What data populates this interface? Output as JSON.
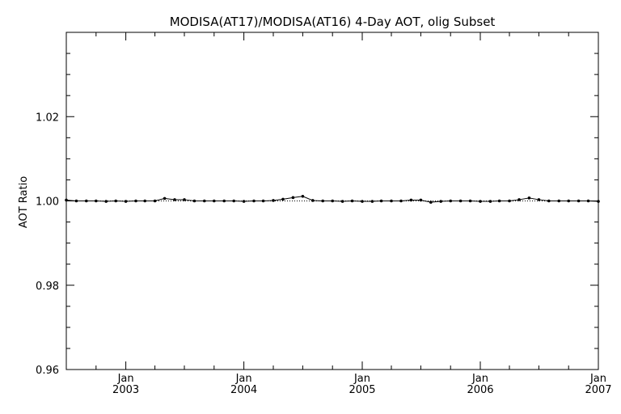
{
  "chart_data": {
    "type": "line",
    "title": "MODISA(AT17)/MODISA(AT16) 4-Day AOT, olig Subset",
    "xlabel": "",
    "ylabel": "AOT Ratio",
    "x_axis": {
      "type": "date",
      "range": [
        "2002-07-01",
        "2007-01-01"
      ],
      "major_ticks": [
        {
          "date": "2003-01-01",
          "month_label": "Jan",
          "year_label": "2003"
        },
        {
          "date": "2004-01-01",
          "month_label": "Jan",
          "year_label": "2004"
        },
        {
          "date": "2005-01-01",
          "month_label": "Jan",
          "year_label": "2005"
        },
        {
          "date": "2006-01-01",
          "month_label": "Jan",
          "year_label": "2006"
        },
        {
          "date": "2007-01-01",
          "month_label": "Jan",
          "year_label": "2007"
        }
      ]
    },
    "y_axis": {
      "ylim": [
        0.96,
        1.04
      ],
      "tick_labels": [
        "0.96",
        "0.98",
        "1.00",
        "1.02"
      ]
    },
    "reference_line": {
      "y": 1.0,
      "style": "dotted"
    },
    "series": [
      {
        "x": [
          "2002-07-01",
          "2002-08-01",
          "2002-09-01",
          "2002-10-01",
          "2002-11-01",
          "2002-12-01",
          "2003-01-01",
          "2003-02-01",
          "2003-03-01",
          "2003-04-01",
          "2003-05-01",
          "2003-06-01",
          "2003-07-01",
          "2003-08-01",
          "2003-09-01",
          "2003-10-01",
          "2003-11-01",
          "2003-12-01",
          "2004-01-01",
          "2004-02-01",
          "2004-03-01",
          "2004-04-01",
          "2004-05-01",
          "2004-06-01",
          "2004-07-01",
          "2004-08-01",
          "2004-09-01",
          "2004-10-01",
          "2004-11-01",
          "2004-12-01",
          "2005-01-01",
          "2005-02-01",
          "2005-03-01",
          "2005-04-01",
          "2005-05-01",
          "2005-06-01",
          "2005-07-01",
          "2005-08-01",
          "2005-09-01",
          "2005-10-01",
          "2005-11-01",
          "2005-12-01",
          "2006-01-01",
          "2006-02-01",
          "2006-03-01",
          "2006-04-01",
          "2006-05-01",
          "2006-06-01",
          "2006-07-01",
          "2006-08-01",
          "2006-09-01",
          "2006-10-01",
          "2006-11-01",
          "2006-12-01",
          "2007-01-01"
        ],
        "values": [
          1.0002,
          1.0,
          1.0,
          1.0,
          0.9999,
          1.0,
          0.9999,
          1.0,
          1.0,
          1.0,
          1.0006,
          1.0003,
          1.0003,
          1.0,
          1.0,
          1.0,
          1.0,
          1.0,
          0.9999,
          1.0,
          1.0,
          1.0001,
          1.0004,
          1.0008,
          1.0011,
          1.0001,
          1.0,
          1.0,
          0.9999,
          1.0,
          0.9999,
          0.9999,
          1.0,
          1.0,
          1.0,
          1.0002,
          1.0002,
          0.9997,
          0.9999,
          1.0,
          1.0,
          1.0,
          0.9999,
          0.9999,
          1.0,
          1.0,
          1.0003,
          1.0007,
          1.0003,
          1.0,
          1.0,
          1.0,
          1.0,
          1.0,
          0.9999
        ]
      }
    ],
    "grid": false,
    "legend": "none",
    "colors": {
      "line": "#000000",
      "reference": "#000000",
      "background": "#ffffff"
    }
  }
}
